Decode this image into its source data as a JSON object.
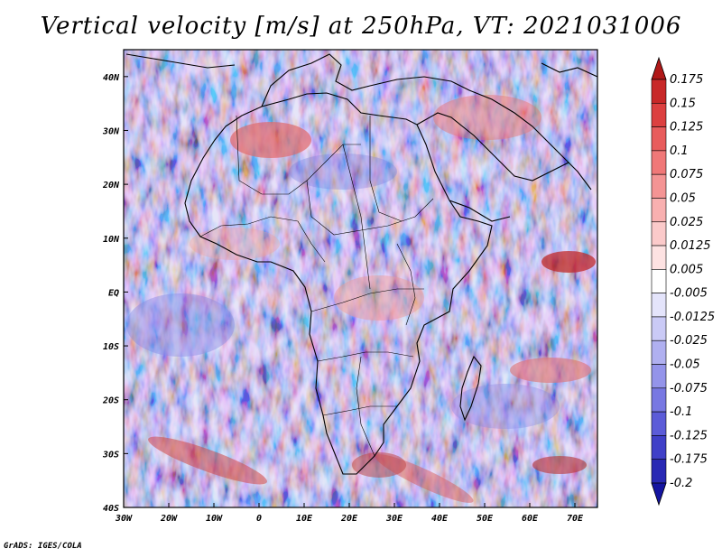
{
  "title": "Vertical velocity [m/s] at 250hPa, VT: 2021031006",
  "footer": "GrADS: IGES/COLA",
  "map": {
    "lat_labels": [
      "40N",
      "30N",
      "20N",
      "10N",
      "EQ",
      "10S",
      "20S",
      "30S",
      "40S"
    ],
    "lon_labels": [
      "30W",
      "20W",
      "10W",
      "0",
      "10E",
      "20E",
      "30E",
      "40E",
      "50E",
      "60E",
      "70E"
    ],
    "lat_range": [
      -40,
      45
    ],
    "lon_range": [
      -30,
      75
    ]
  },
  "colorbar": {
    "labels": [
      "0.175",
      "0.15",
      "0.125",
      "0.1",
      "0.075",
      "0.05",
      "0.025",
      "0.0125",
      "0.005",
      "-0.005",
      "-0.0125",
      "-0.025",
      "-0.05",
      "-0.075",
      "-0.1",
      "-0.125",
      "-0.175",
      "-0.2"
    ],
    "colors": [
      "#b01818",
      "#c82828",
      "#dc4040",
      "#e85c5c",
      "#f07878",
      "#f49494",
      "#f8b0b0",
      "#fbcaca",
      "#fde2e2",
      "#ffffff",
      "#e4e4fb",
      "#cacaf6",
      "#b0b0f0",
      "#9494ea",
      "#7878e2",
      "#5c5cd8",
      "#4040c8",
      "#2828b4",
      "#1414a0"
    ]
  }
}
